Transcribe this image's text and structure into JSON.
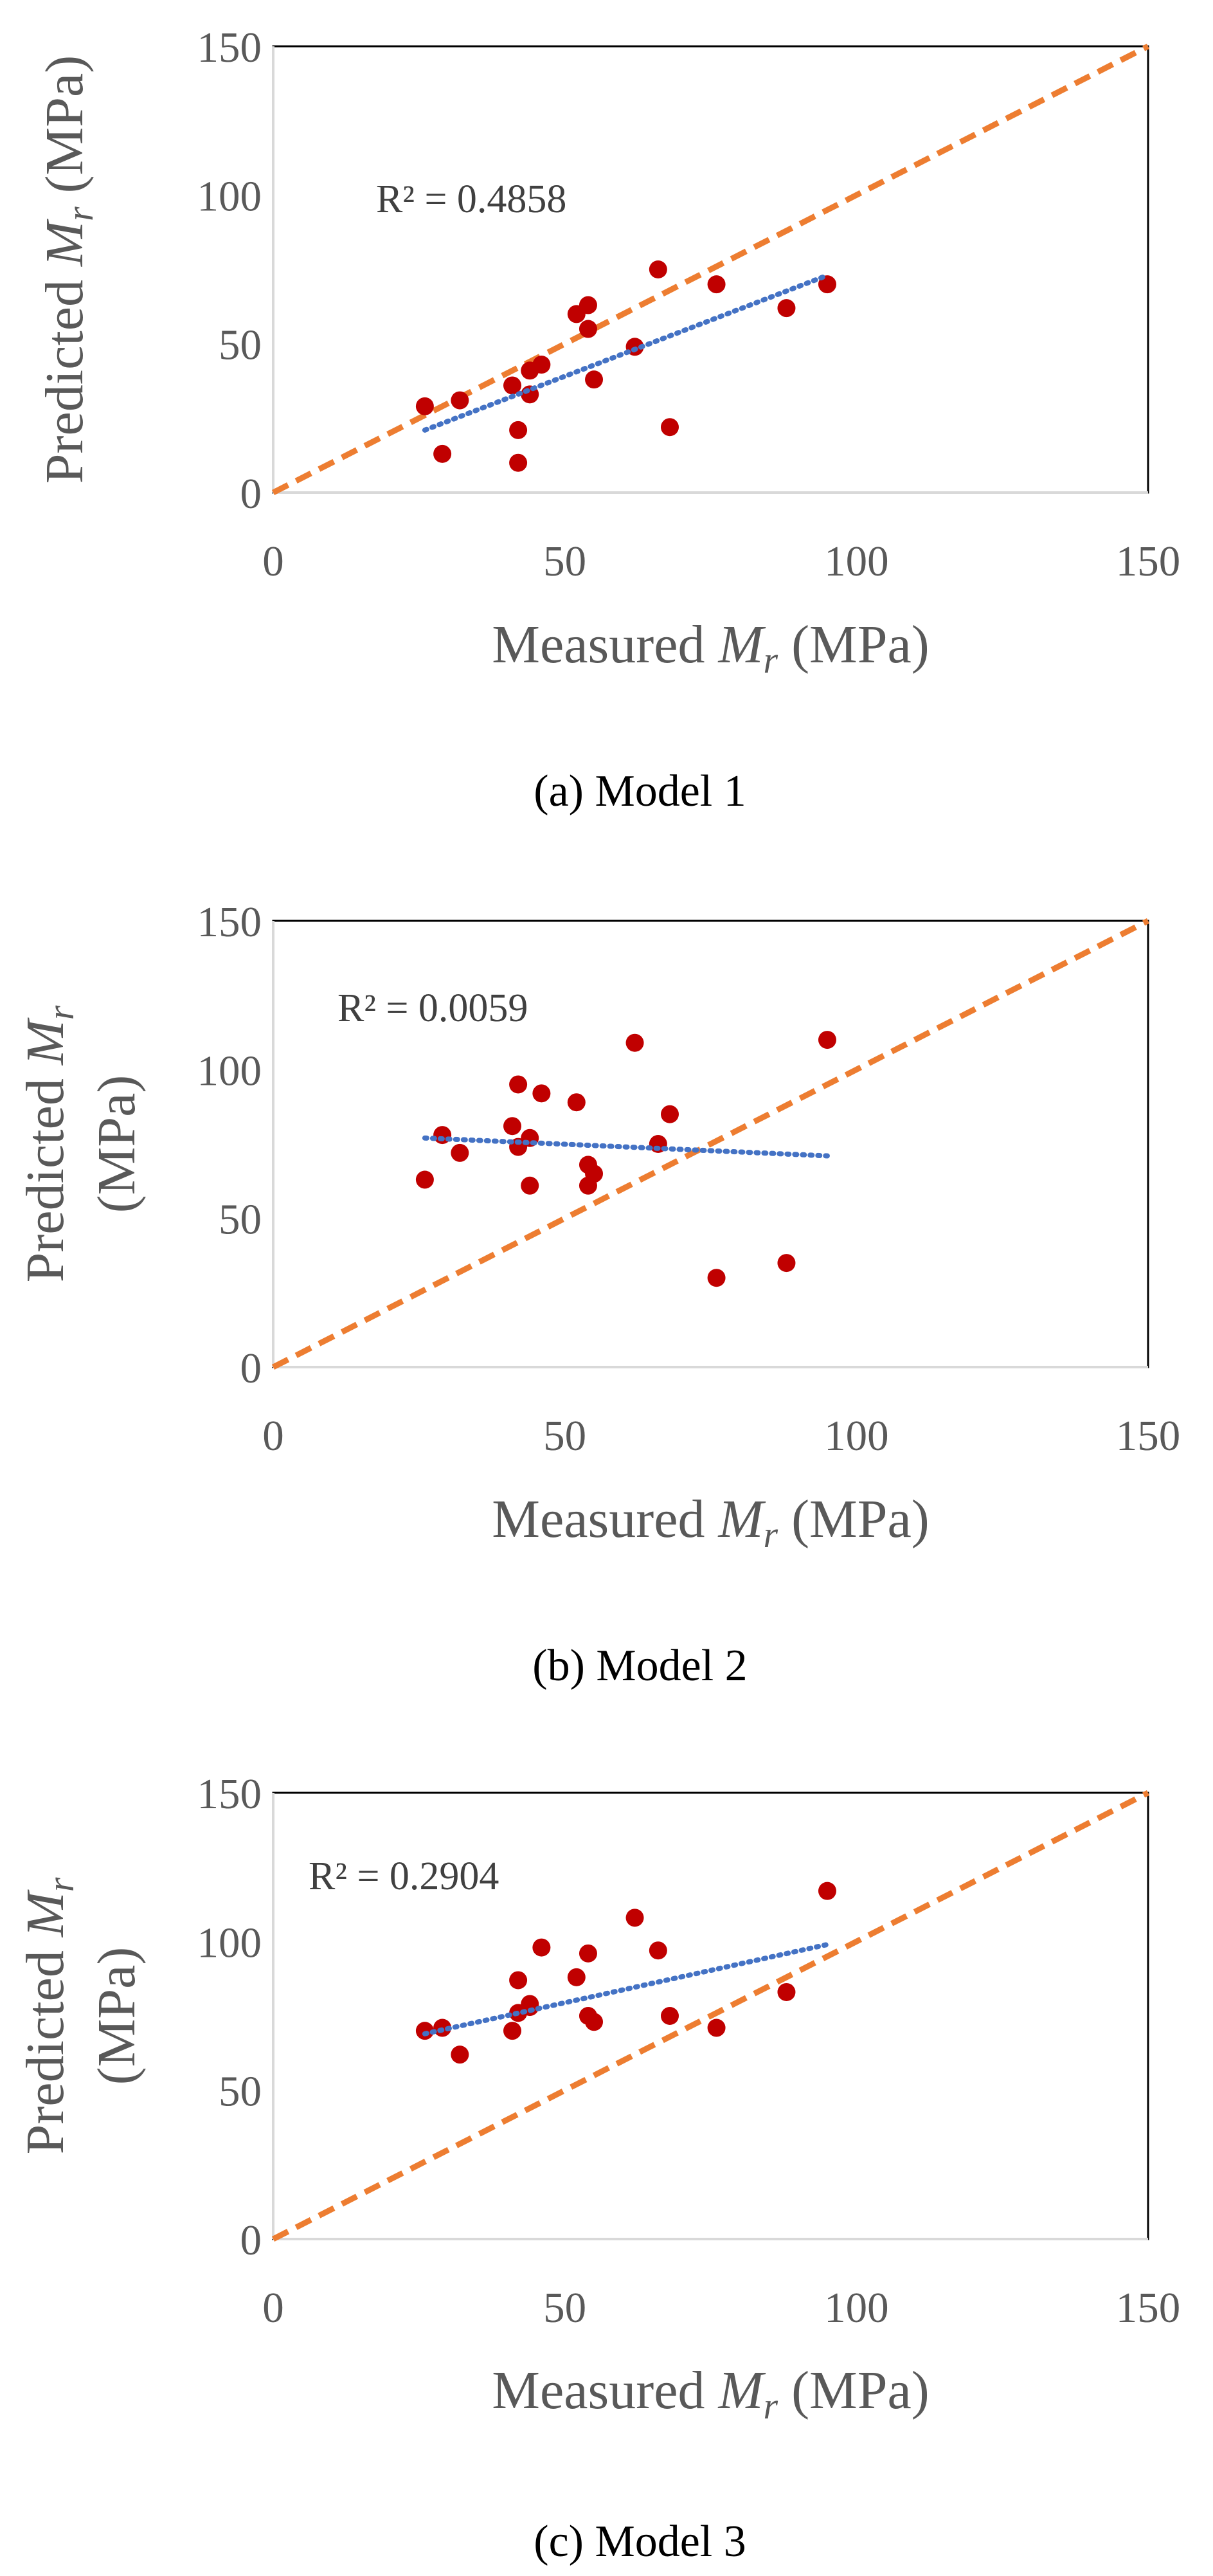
{
  "colors": {
    "points": "#C00000",
    "trendline": "#4472C4",
    "identity_line": "#ED7D31",
    "axis": "#D9D9D9",
    "frame": "#000000",
    "text": "#595959"
  },
  "chart_data": [
    {
      "type": "scatter",
      "caption": "(a)  Model 1",
      "xlabel": "Measured Mr (MPa)",
      "ylabel": "Predicted Mr (MPa)",
      "xlabel_parts": [
        "Measured ",
        "M",
        "r",
        " (MPa)"
      ],
      "ylabel_lines": [
        [
          "Predicted ",
          "M",
          "r",
          " (MPa)"
        ]
      ],
      "xlim": [
        0,
        150
      ],
      "ylim": [
        0,
        150
      ],
      "xticks": [
        "0",
        "50",
        "100",
        "150"
      ],
      "yticks": [
        "0",
        "50",
        "100",
        "150"
      ],
      "r2_label": "R² = 0.4858",
      "trendline": {
        "x": [
          26,
          95
        ],
        "y": [
          21,
          73
        ]
      },
      "identity_line": {
        "x": [
          0,
          150
        ],
        "y": [
          0,
          150
        ]
      },
      "points": {
        "x": [
          26,
          29,
          32,
          41,
          42,
          42,
          44,
          44,
          46,
          52,
          54,
          54,
          55,
          62,
          66,
          68,
          76,
          88,
          95
        ],
        "y": [
          29,
          13,
          31,
          36,
          21,
          10,
          33,
          41,
          43,
          60,
          63,
          55,
          38,
          49,
          75,
          22,
          70,
          62,
          70
        ]
      }
    },
    {
      "type": "scatter",
      "caption": "(b)  Model 2",
      "xlabel": "Measured Mr (MPa)",
      "ylabel": "Predicted Mr (MPa)",
      "xlabel_parts": [
        "Measured ",
        "M",
        "r",
        " (MPa)"
      ],
      "ylabel_lines": [
        [
          "Predicted ",
          "M",
          "r",
          ""
        ],
        [
          "(MPa)",
          "",
          "",
          ""
        ]
      ],
      "xlim": [
        0,
        150
      ],
      "ylim": [
        0,
        150
      ],
      "xticks": [
        "0",
        "50",
        "100",
        "150"
      ],
      "yticks": [
        "0",
        "50",
        "100",
        "150"
      ],
      "r2_label": "R² = 0.0059",
      "trendline": {
        "x": [
          26,
          95
        ],
        "y": [
          77,
          71
        ]
      },
      "identity_line": {
        "x": [
          0,
          150
        ],
        "y": [
          0,
          150
        ]
      },
      "points": {
        "x": [
          26,
          29,
          32,
          41,
          42,
          42,
          44,
          44,
          46,
          52,
          54,
          54,
          55,
          62,
          66,
          68,
          76,
          88,
          95
        ],
        "y": [
          63,
          78,
          72,
          81,
          95,
          74,
          77,
          61,
          92,
          89,
          61,
          68,
          65,
          109,
          75,
          85,
          30,
          35,
          110
        ]
      }
    },
    {
      "type": "scatter",
      "caption": "(c)  Model 3",
      "xlabel": "Measured Mr (MPa)",
      "ylabel": "Predicted Mr (MPa)",
      "xlabel_parts": [
        "Measured ",
        "M",
        "r",
        " (MPa)"
      ],
      "ylabel_lines": [
        [
          "Predicted ",
          "M",
          "r",
          ""
        ],
        [
          "(MPa)",
          "",
          "",
          ""
        ]
      ],
      "xlim": [
        0,
        150
      ],
      "ylim": [
        0,
        150
      ],
      "xticks": [
        "0",
        "50",
        "100",
        "150"
      ],
      "yticks": [
        "0",
        "50",
        "100",
        "150"
      ],
      "r2_label": "R² = 0.2904",
      "trendline": {
        "x": [
          26,
          95
        ],
        "y": [
          69,
          99
        ]
      },
      "identity_line": {
        "x": [
          0,
          150
        ],
        "y": [
          0,
          150
        ]
      },
      "points": {
        "x": [
          26,
          29,
          32,
          41,
          42,
          42,
          44,
          44,
          46,
          52,
          54,
          54,
          55,
          62,
          66,
          68,
          76,
          88,
          95
        ],
        "y": [
          70,
          71,
          62,
          70,
          76,
          87,
          79,
          78,
          98,
          88,
          75,
          96,
          73,
          108,
          97,
          75,
          71,
          83,
          117
        ]
      }
    }
  ]
}
